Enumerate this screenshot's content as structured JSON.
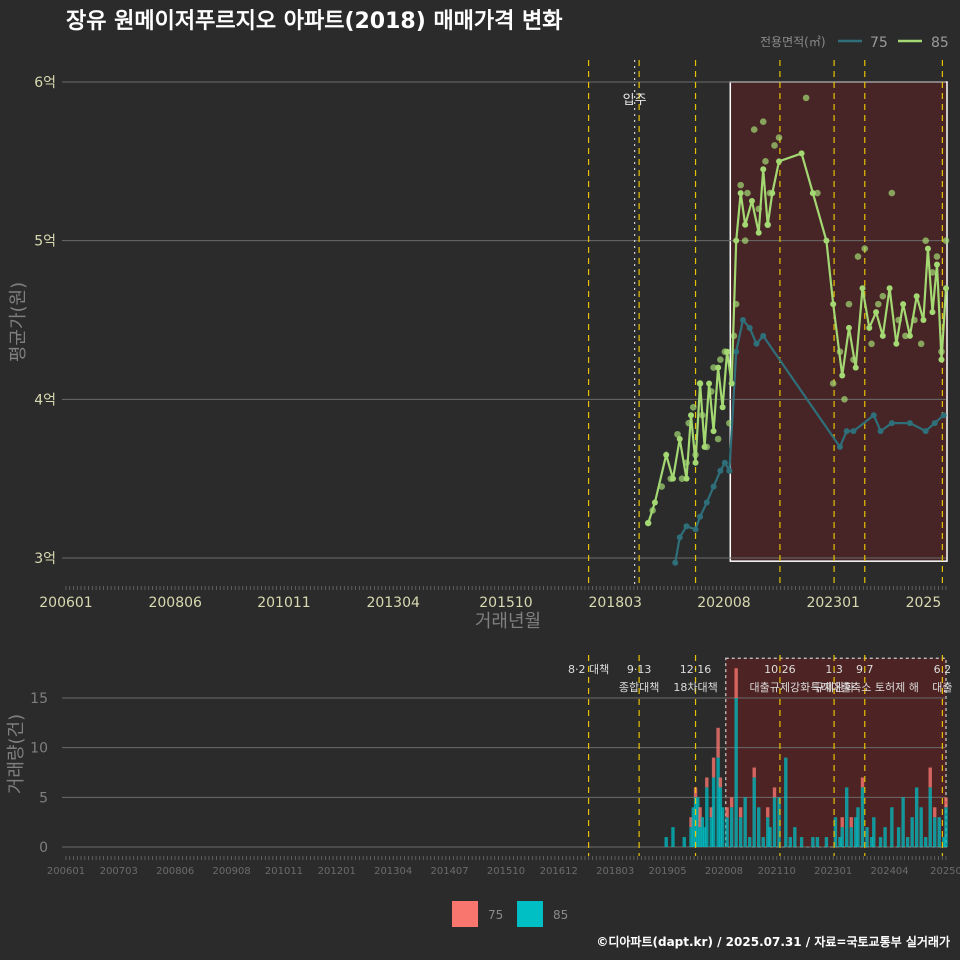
{
  "title": "장유 원메이저푸르지오 아파트(2018) 매매가격 변화",
  "credit": "©디아파트(dapt.kr) / 2025.07.31 / 자료=국토교통부 실거래가",
  "colors": {
    "s75": "#2e6f7a",
    "s85": "#a4d873",
    "bar75": "#f8766d",
    "bar85": "#00bfc4",
    "vline": "#e6c200",
    "movein": "#cfcfcf",
    "shade": "#6b1e1e"
  },
  "chart_data": [
    {
      "type": "line",
      "ylabel": "평균가(원)",
      "xlabel": "거래년월",
      "ylim": [
        2.85,
        6.1
      ],
      "yticks": [
        {
          "v": 3,
          "label": "3억"
        },
        {
          "v": 4,
          "label": "4억"
        },
        {
          "v": 5,
          "label": "5억"
        },
        {
          "v": 6,
          "label": "6억"
        }
      ],
      "xticks": [
        {
          "x": 2006.0,
          "label": "200601"
        },
        {
          "x": 2008.42,
          "label": "200806"
        },
        {
          "x": 2010.83,
          "label": "201011"
        },
        {
          "x": 2013.25,
          "label": "201304"
        },
        {
          "x": 2015.75,
          "label": "201510"
        },
        {
          "x": 2018.17,
          "label": "201803"
        },
        {
          "x": 2020.58,
          "label": "202008"
        },
        {
          "x": 2023.0,
          "label": "202301"
        },
        {
          "x": 2025.0,
          "label": "2025"
        }
      ],
      "legend_title": "전용면적(㎡)",
      "annotation": "입주",
      "series": [
        {
          "name": "75",
          "points": [
            [
              2019.5,
              2.97
            ],
            [
              2019.6,
              3.13
            ],
            [
              2019.75,
              3.2
            ],
            [
              2019.95,
              3.18
            ],
            [
              2020.05,
              3.26
            ],
            [
              2020.2,
              3.35
            ],
            [
              2020.35,
              3.45
            ],
            [
              2020.5,
              3.55
            ],
            [
              2020.6,
              3.6
            ],
            [
              2020.7,
              3.55
            ],
            [
              2020.85,
              4.3
            ],
            [
              2021.0,
              4.5
            ],
            [
              2021.15,
              4.45
            ],
            [
              2021.3,
              4.35
            ],
            [
              2021.45,
              4.4
            ],
            [
              2023.15,
              3.7
            ],
            [
              2023.3,
              3.8
            ],
            [
              2023.45,
              3.8
            ],
            [
              2023.9,
              3.9
            ],
            [
              2024.05,
              3.8
            ],
            [
              2024.3,
              3.85
            ],
            [
              2024.7,
              3.85
            ],
            [
              2025.05,
              3.8
            ],
            [
              2025.25,
              3.85
            ],
            [
              2025.45,
              3.9
            ]
          ]
        },
        {
          "name": "85",
          "points": [
            [
              2018.9,
              3.22
            ],
            [
              2019.05,
              3.35
            ],
            [
              2019.3,
              3.65
            ],
            [
              2019.45,
              3.5
            ],
            [
              2019.6,
              3.75
            ],
            [
              2019.75,
              3.5
            ],
            [
              2019.85,
              3.9
            ],
            [
              2019.95,
              3.6
            ],
            [
              2020.05,
              4.1
            ],
            [
              2020.15,
              3.7
            ],
            [
              2020.25,
              4.1
            ],
            [
              2020.35,
              3.8
            ],
            [
              2020.45,
              4.2
            ],
            [
              2020.55,
              3.95
            ],
            [
              2020.65,
              4.3
            ],
            [
              2020.75,
              4.1
            ],
            [
              2020.85,
              5.0
            ],
            [
              2020.95,
              5.3
            ],
            [
              2021.05,
              5.1
            ],
            [
              2021.2,
              5.25
            ],
            [
              2021.35,
              5.05
            ],
            [
              2021.45,
              5.45
            ],
            [
              2021.55,
              5.1
            ],
            [
              2021.65,
              5.3
            ],
            [
              2021.8,
              5.5
            ],
            [
              2022.3,
              5.55
            ],
            [
              2022.55,
              5.3
            ],
            [
              2022.85,
              5.0
            ],
            [
              2023.0,
              4.6
            ],
            [
              2023.2,
              4.15
            ],
            [
              2023.35,
              4.45
            ],
            [
              2023.5,
              4.2
            ],
            [
              2023.65,
              4.7
            ],
            [
              2023.8,
              4.45
            ],
            [
              2023.95,
              4.55
            ],
            [
              2024.1,
              4.4
            ],
            [
              2024.25,
              4.7
            ],
            [
              2024.4,
              4.35
            ],
            [
              2024.55,
              4.6
            ],
            [
              2024.7,
              4.4
            ],
            [
              2024.85,
              4.65
            ],
            [
              2025.0,
              4.5
            ],
            [
              2025.1,
              4.95
            ],
            [
              2025.2,
              4.55
            ],
            [
              2025.3,
              4.85
            ],
            [
              2025.4,
              4.25
            ],
            [
              2025.5,
              4.7
            ]
          ]
        }
      ],
      "scatter_85": [
        [
          2018.9,
          3.22
        ],
        [
          2019.0,
          3.3
        ],
        [
          2019.2,
          3.45
        ],
        [
          2019.4,
          3.5
        ],
        [
          2019.55,
          3.78
        ],
        [
          2019.65,
          3.5
        ],
        [
          2019.75,
          3.6
        ],
        [
          2019.8,
          3.85
        ],
        [
          2019.9,
          3.95
        ],
        [
          2019.95,
          3.65
        ],
        [
          2020.05,
          4.1
        ],
        [
          2020.1,
          3.9
        ],
        [
          2020.2,
          3.7
        ],
        [
          2020.3,
          4.05
        ],
        [
          2020.35,
          4.2
        ],
        [
          2020.45,
          3.75
        ],
        [
          2020.5,
          4.25
        ],
        [
          2020.6,
          4.3
        ],
        [
          2020.7,
          3.85
        ],
        [
          2020.8,
          4.4
        ],
        [
          2020.85,
          4.6
        ],
        [
          2020.95,
          5.35
        ],
        [
          2021.05,
          5.0
        ],
        [
          2021.1,
          5.3
        ],
        [
          2021.25,
          5.7
        ],
        [
          2021.35,
          5.2
        ],
        [
          2021.45,
          5.75
        ],
        [
          2021.5,
          5.5
        ],
        [
          2021.55,
          5.1
        ],
        [
          2021.6,
          5.3
        ],
        [
          2021.7,
          5.6
        ],
        [
          2021.8,
          5.65
        ],
        [
          2022.4,
          5.9
        ],
        [
          2022.65,
          5.3
        ],
        [
          2023.0,
          4.1
        ],
        [
          2023.15,
          4.3
        ],
        [
          2023.25,
          4.0
        ],
        [
          2023.35,
          4.6
        ],
        [
          2023.45,
          4.25
        ],
        [
          2023.55,
          4.9
        ],
        [
          2023.7,
          4.95
        ],
        [
          2023.85,
          4.35
        ],
        [
          2024.0,
          4.6
        ],
        [
          2024.1,
          4.65
        ],
        [
          2024.3,
          5.3
        ],
        [
          2024.45,
          4.5
        ],
        [
          2024.6,
          4.4
        ],
        [
          2024.8,
          4.5
        ],
        [
          2024.95,
          4.35
        ],
        [
          2025.05,
          5.0
        ],
        [
          2025.2,
          4.8
        ],
        [
          2025.3,
          4.9
        ],
        [
          2025.4,
          4.3
        ],
        [
          2025.5,
          5.0
        ]
      ]
    },
    {
      "type": "bar",
      "ylabel": "거래량(건)",
      "ylim": [
        -1,
        19
      ],
      "yticks": [
        {
          "v": 0,
          "label": "0"
        },
        {
          "v": 5,
          "label": "5"
        },
        {
          "v": 10,
          "label": "10"
        },
        {
          "v": 15,
          "label": "15"
        }
      ],
      "xticks": [
        {
          "x": 2006.0,
          "label": "200601"
        },
        {
          "x": 2007.17,
          "label": "200703"
        },
        {
          "x": 2008.42,
          "label": "200806"
        },
        {
          "x": 2009.67,
          "label": "200908"
        },
        {
          "x": 2010.83,
          "label": "201011"
        },
        {
          "x": 2012.0,
          "label": "201201"
        },
        {
          "x": 2013.25,
          "label": "201304"
        },
        {
          "x": 2014.5,
          "label": "201407"
        },
        {
          "x": 2015.75,
          "label": "201510"
        },
        {
          "x": 2016.92,
          "label": "201612"
        },
        {
          "x": 2018.17,
          "label": "201803"
        },
        {
          "x": 2019.33,
          "label": "201905"
        },
        {
          "x": 2020.58,
          "label": "202008"
        },
        {
          "x": 2021.75,
          "label": "202110"
        },
        {
          "x": 2023.0,
          "label": "202301"
        },
        {
          "x": 2024.25,
          "label": "202404"
        },
        {
          "x": 2025.5,
          "label": "20250"
        }
      ],
      "legend": [
        "75",
        "85"
      ],
      "policies": [
        {
          "x": 2017.58,
          "line1": "8·2 대책",
          "line2": ""
        },
        {
          "x": 2018.7,
          "line1": "9·13",
          "line2": "종합대책"
        },
        {
          "x": 2019.95,
          "line1": "12·16",
          "line2": "18차대책"
        },
        {
          "x": 2021.82,
          "line1": "10.26",
          "line2": "대출규제강화"
        },
        {
          "x": 2023.02,
          "line1": "1.3",
          "line2": "규제완화"
        },
        {
          "x": 2023.7,
          "line1": "9.7",
          "line2": "특례대출축소 토허제 해"
        },
        {
          "x": 2025.42,
          "line1": "6.2",
          "line2": "대출"
        }
      ],
      "bars": [
        [
          2019.3,
          0,
          1
        ],
        [
          2019.45,
          0,
          2
        ],
        [
          2019.7,
          0,
          1
        ],
        [
          2019.85,
          1,
          2
        ],
        [
          2019.9,
          0,
          4
        ],
        [
          2019.95,
          1,
          5
        ],
        [
          2020.0,
          0,
          5
        ],
        [
          2020.05,
          2,
          2
        ],
        [
          2020.1,
          0,
          3
        ],
        [
          2020.15,
          0,
          2
        ],
        [
          2020.2,
          1,
          6
        ],
        [
          2020.3,
          1,
          3
        ],
        [
          2020.35,
          2,
          7
        ],
        [
          2020.45,
          3,
          9
        ],
        [
          2020.5,
          1,
          6
        ],
        [
          2020.55,
          0,
          4
        ],
        [
          2020.65,
          1,
          3
        ],
        [
          2020.75,
          1,
          4
        ],
        [
          2020.85,
          3,
          15
        ],
        [
          2020.95,
          1,
          3
        ],
        [
          2021.05,
          0,
          5
        ],
        [
          2021.15,
          0,
          1
        ],
        [
          2021.25,
          1,
          7
        ],
        [
          2021.35,
          0,
          4
        ],
        [
          2021.45,
          0,
          1
        ],
        [
          2021.55,
          1,
          3
        ],
        [
          2021.6,
          0,
          2
        ],
        [
          2021.7,
          1,
          5
        ],
        [
          2021.8,
          0,
          5
        ],
        [
          2021.95,
          0,
          9
        ],
        [
          2022.05,
          0,
          1
        ],
        [
          2022.15,
          0,
          2
        ],
        [
          2022.3,
          0,
          1
        ],
        [
          2022.55,
          0,
          1
        ],
        [
          2022.65,
          0,
          1
        ],
        [
          2022.85,
          0,
          1
        ],
        [
          2023.05,
          0,
          3
        ],
        [
          2023.15,
          0,
          1
        ],
        [
          2023.2,
          1,
          2
        ],
        [
          2023.3,
          0,
          6
        ],
        [
          2023.4,
          1,
          2
        ],
        [
          2023.5,
          0,
          3
        ],
        [
          2023.55,
          0,
          4
        ],
        [
          2023.65,
          1,
          6
        ],
        [
          2023.75,
          0,
          2
        ],
        [
          2023.85,
          0,
          1
        ],
        [
          2023.9,
          0,
          3
        ],
        [
          2024.05,
          0,
          1
        ],
        [
          2024.15,
          0,
          2
        ],
        [
          2024.3,
          0,
          4
        ],
        [
          2024.45,
          0,
          2
        ],
        [
          2024.55,
          0,
          5
        ],
        [
          2024.65,
          0,
          1
        ],
        [
          2024.75,
          0,
          3
        ],
        [
          2024.85,
          0,
          6
        ],
        [
          2024.95,
          0,
          4
        ],
        [
          2025.05,
          0,
          1
        ],
        [
          2025.15,
          2,
          6
        ],
        [
          2025.25,
          1,
          3
        ],
        [
          2025.35,
          0,
          3
        ],
        [
          2025.45,
          0,
          1
        ],
        [
          2025.5,
          1,
          4
        ]
      ]
    }
  ]
}
